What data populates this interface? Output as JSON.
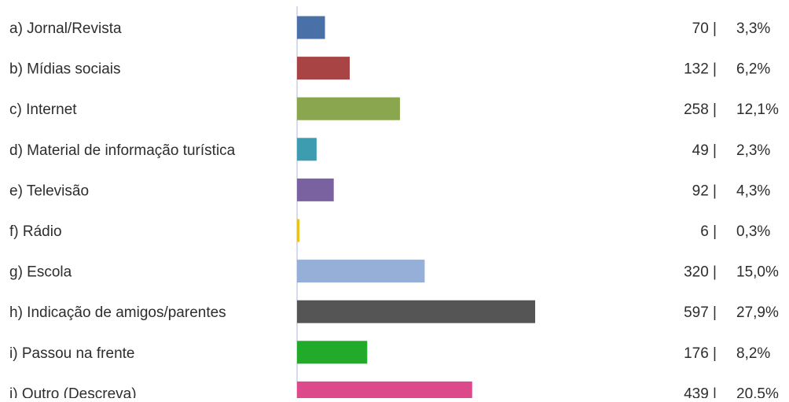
{
  "chart_data": {
    "type": "bar",
    "orientation": "horizontal",
    "grid": false,
    "categories": [
      "a) Jornal/Revista",
      "b) Mídias sociais",
      "c) Internet",
      "d) Material de informação turística",
      "e) Televisão",
      "f) Rádio",
      "g) Escola",
      "h) Indicação de amigos/parentes",
      "i) Passou na frente",
      "j) Outro (Descreva)"
    ],
    "values": [
      70,
      132,
      258,
      49,
      92,
      6,
      320,
      597,
      176,
      439
    ],
    "percent_labels": [
      "3,3%",
      "6,2%",
      "12,1%",
      "2,3%",
      "4,3%",
      "0,3%",
      "15,0%",
      "27,9%",
      "8,2%",
      "20,5%"
    ],
    "colors": [
      "#4a70a8",
      "#a84444",
      "#8aa64e",
      "#3d9cb0",
      "#7a62a0",
      "#e8c31e",
      "#96afd8",
      "#555555",
      "#22aa2a",
      "#dc4a8c"
    ],
    "axis_line_color": "#c7cde8"
  }
}
